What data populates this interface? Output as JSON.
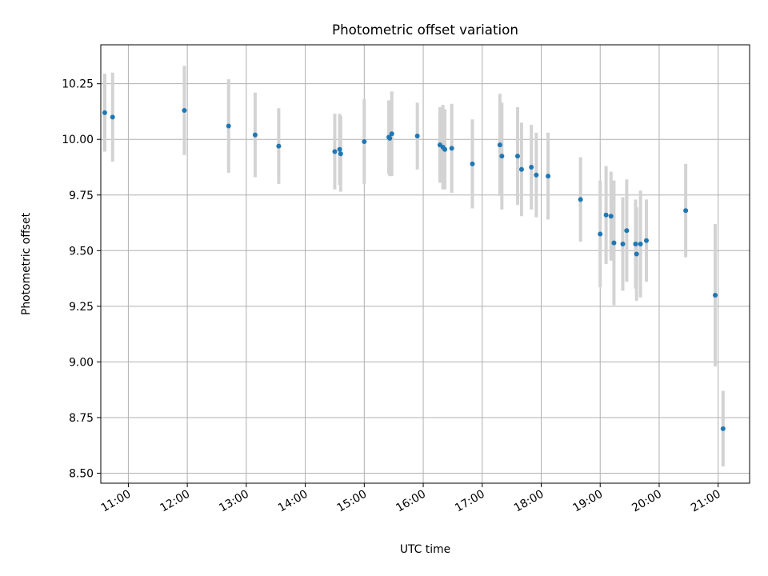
{
  "chart_data": {
    "type": "scatter",
    "title": "Photometric offset variation",
    "xlabel": "UTC time",
    "ylabel": "Photometric offset",
    "x_ticks": [
      "11:00",
      "12:00",
      "13:00",
      "14:00",
      "15:00",
      "16:00",
      "17:00",
      "18:00",
      "19:00",
      "20:00",
      "21:00"
    ],
    "y_ticks": [
      "8.50",
      "8.75",
      "9.00",
      "9.25",
      "9.50",
      "9.75",
      "10.00",
      "10.25"
    ],
    "xlim": [
      "10:32",
      "21:32"
    ],
    "ylim": [
      8.455,
      10.425
    ],
    "grid": true,
    "colors": {
      "points": "#1f77b4",
      "errorbars": "#d3d3d3",
      "grid": "#b0b0b0"
    },
    "series": [
      {
        "points": [
          {
            "x": "10:36",
            "y": 10.12,
            "err": 0.175
          },
          {
            "x": "10:44",
            "y": 10.1,
            "err": 0.2
          },
          {
            "x": "11:57",
            "y": 10.13,
            "err": 0.2
          },
          {
            "x": "12:42",
            "y": 10.06,
            "err": 0.21
          },
          {
            "x": "13:09",
            "y": 10.02,
            "err": 0.19
          },
          {
            "x": "13:33",
            "y": 9.97,
            "err": 0.17
          },
          {
            "x": "14:30",
            "y": 9.945,
            "err": 0.17
          },
          {
            "x": "14:35",
            "y": 9.955,
            "err": 0.16
          },
          {
            "x": "14:36",
            "y": 9.935,
            "err": 0.17
          },
          {
            "x": "15:00",
            "y": 9.99,
            "err": 0.19
          },
          {
            "x": "15:25",
            "y": 10.01,
            "err": 0.165
          },
          {
            "x": "15:26",
            "y": 10.005,
            "err": 0.17
          },
          {
            "x": "15:28",
            "y": 10.025,
            "err": 0.19
          },
          {
            "x": "15:54",
            "y": 10.015,
            "err": 0.15
          },
          {
            "x": "16:17",
            "y": 9.975,
            "err": 0.17
          },
          {
            "x": "16:20",
            "y": 9.965,
            "err": 0.19
          },
          {
            "x": "16:22",
            "y": 9.955,
            "err": 0.18
          },
          {
            "x": "16:29",
            "y": 9.96,
            "err": 0.2
          },
          {
            "x": "16:50",
            "y": 9.89,
            "err": 0.2
          },
          {
            "x": "17:18",
            "y": 9.975,
            "err": 0.23
          },
          {
            "x": "17:20",
            "y": 9.925,
            "err": 0.24
          },
          {
            "x": "17:36",
            "y": 9.925,
            "err": 0.22
          },
          {
            "x": "17:40",
            "y": 9.865,
            "err": 0.21
          },
          {
            "x": "17:50",
            "y": 9.875,
            "err": 0.19
          },
          {
            "x": "17:55",
            "y": 9.84,
            "err": 0.19
          },
          {
            "x": "18:07",
            "y": 9.835,
            "err": 0.195
          },
          {
            "x": "18:40",
            "y": 9.73,
            "err": 0.19
          },
          {
            "x": "19:00",
            "y": 9.575,
            "err": 0.24
          },
          {
            "x": "19:06",
            "y": 9.66,
            "err": 0.22
          },
          {
            "x": "19:11",
            "y": 9.655,
            "err": 0.2
          },
          {
            "x": "19:14",
            "y": 9.535,
            "err": 0.28
          },
          {
            "x": "19:23",
            "y": 9.53,
            "err": 0.21
          },
          {
            "x": "19:27",
            "y": 9.59,
            "err": 0.23
          },
          {
            "x": "19:36",
            "y": 9.53,
            "err": 0.2
          },
          {
            "x": "19:37",
            "y": 9.485,
            "err": 0.21
          },
          {
            "x": "19:41",
            "y": 9.53,
            "err": 0.24
          },
          {
            "x": "19:47",
            "y": 9.545,
            "err": 0.185
          },
          {
            "x": "20:27",
            "y": 9.68,
            "err": 0.21
          },
          {
            "x": "20:57",
            "y": 9.3,
            "err": 0.32
          },
          {
            "x": "21:05",
            "y": 8.7,
            "err": 0.17
          }
        ]
      }
    ]
  }
}
